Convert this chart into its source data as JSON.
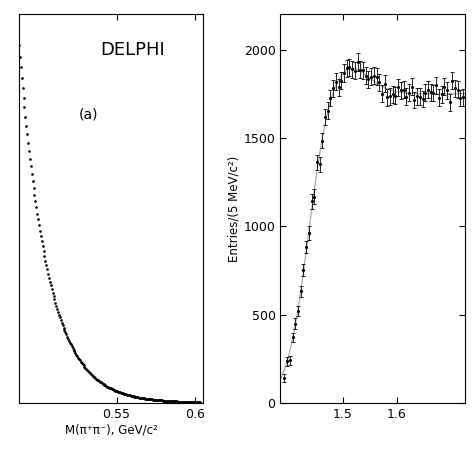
{
  "left_panel": {
    "label": "DELPHI",
    "sublabel": "(a)",
    "xlabel": "M(π⁺π⁻), GeV/c²",
    "xmin": 0.488,
    "xmax": 0.605,
    "ymin": 0,
    "ymax": 1.0,
    "xticks": [
      0.55,
      0.6
    ],
    "xtick_labels": [
      "0.55",
      "0.6"
    ]
  },
  "right_panel": {
    "ylabel": "Entries/(5 MeV/c²)",
    "ymin": 0,
    "ymax": 2200,
    "xmin": 1.385,
    "xmax": 1.725,
    "xticks": [
      1.5,
      1.6
    ],
    "xtick_labels": [
      "1.5",
      "1.6"
    ],
    "yticks": [
      0,
      500,
      1000,
      1500,
      2000
    ]
  },
  "background_color": "#ffffff",
  "dot_color": "#000000"
}
